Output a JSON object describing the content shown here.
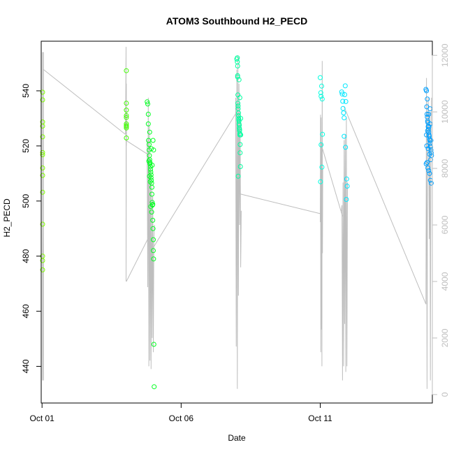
{
  "chart_data": {
    "type": "scatter",
    "title": "ATOM3 Southbound H2_PECD",
    "xlabel": "Date",
    "ylabel": "H2_PECD",
    "x_ticks": [
      "Oct 01",
      "Oct 06",
      "Oct 11"
    ],
    "x_tick_days": [
      1,
      6,
      11
    ],
    "xlim_days": [
      0.97,
      15.03
    ],
    "ylim": [
      426.7,
      558.0
    ],
    "y_ticks": [
      440,
      460,
      480,
      500,
      520,
      540
    ],
    "y2lim": [
      -300,
      12500
    ],
    "y2_ticks": [
      0,
      2000,
      4000,
      6000,
      8000,
      10000,
      12000
    ],
    "grid": false,
    "legend": "none",
    "colors": {
      "grey_line": "#bebebe",
      "points_oct1": "#80ff00",
      "points_oct4": "#40ff00",
      "points_oct5": "#00ff20",
      "points_oct8": "#00ffa0",
      "points_oct11": "#00ffe0",
      "points_oct12": "#00e8ff",
      "points_oct15": "#00a0ff"
    },
    "series": [
      {
        "color_key": "points_oct1",
        "x": [
          1.02,
          1.02,
          1.02,
          1.02,
          1.02,
          1.02,
          1.02,
          1.02,
          1.02,
          1.02,
          1.02,
          1.02,
          1.02,
          1.02
        ],
        "y": [
          539.5,
          536.7,
          528.7,
          527.2,
          523.3,
          517.6,
          516.8,
          509.3,
          503.2,
          491.6,
          478.4,
          475.0,
          480.0,
          512.0
        ]
      },
      {
        "color_key": "points_oct4",
        "x": [
          4.03,
          4.03,
          4.03,
          4.03,
          4.03,
          4.03,
          4.03,
          4.03,
          4.03,
          4.03
        ],
        "y": [
          547.3,
          535.5,
          531.0,
          530.3,
          527.4,
          527.0,
          526.5,
          522.9,
          528.0,
          533.0
        ]
      },
      {
        "color_key": "points_oct5",
        "x": [
          4.78,
          4.8,
          4.82,
          4.82,
          4.83,
          4.85,
          4.85,
          4.86,
          4.87,
          4.88,
          4.88,
          4.9,
          4.9,
          4.91,
          4.92,
          4.92,
          4.93,
          4.94,
          4.95,
          4.95,
          4.96,
          4.97,
          4.98,
          4.98,
          4.99,
          5.0,
          5.0,
          5.01,
          5.02,
          5.03,
          4.84,
          4.86,
          4.89,
          4.93,
          4.96,
          4.99,
          5.01,
          4.87,
          4.91,
          4.94
        ],
        "y": [
          536.0,
          535.2,
          531.5,
          528.0,
          522.0,
          520.5,
          518.5,
          516.5,
          515.0,
          514.0,
          513.5,
          512.5,
          511.5,
          510.5,
          509.5,
          508.5,
          507.5,
          506.5,
          505.0,
          502.5,
          499.5,
          498.5,
          498.8,
          493.0,
          490.0,
          486.0,
          482.0,
          479.0,
          448.0,
          432.6,
          514.5,
          509.0,
          507.0,
          519.0,
          513.0,
          522.0,
          518.5,
          525.0,
          498.0,
          496.0
        ]
      },
      {
        "color_key": "points_oct8",
        "x": [
          8.0,
          8.02,
          8.02,
          8.03,
          8.03,
          8.04,
          8.04,
          8.05,
          8.05,
          8.06,
          8.06,
          8.07,
          8.07,
          8.08,
          8.08,
          8.09,
          8.09,
          8.1,
          8.1,
          8.11,
          8.11,
          8.12,
          8.12,
          8.13,
          8.14,
          8.14,
          8.05,
          8.08,
          8.11,
          8.03
        ],
        "y": [
          551.5,
          552.0,
          550.5,
          545.0,
          545.5,
          538.5,
          535.5,
          534.5,
          533.5,
          532.0,
          531.0,
          530.0,
          529.5,
          529.0,
          528.0,
          527.5,
          526.5,
          526.0,
          525.5,
          524.5,
          524.0,
          520.5,
          517.5,
          512.5,
          524.0,
          530.0,
          509.0,
          544.0,
          537.5,
          549.0
        ]
      },
      {
        "color_key": "points_oct11",
        "x": [
          11.0,
          11.02,
          11.03,
          11.05,
          11.07,
          11.08,
          11.03,
          11.06,
          11.01
        ],
        "y": [
          544.8,
          539.3,
          538.0,
          541.7,
          537.0,
          524.2,
          520.4,
          512.3,
          507.0
        ]
      },
      {
        "color_key": "points_oct12",
        "x": [
          11.77,
          11.79,
          11.81,
          11.82,
          11.84,
          11.86,
          11.88,
          11.9,
          11.92,
          11.94,
          11.95,
          11.97,
          11.86,
          11.91
        ],
        "y": [
          539.6,
          538.8,
          536.2,
          533.6,
          532.0,
          530.2,
          538.6,
          541.8,
          536.1,
          500.6,
          508.0,
          505.4,
          523.5,
          519.5
        ]
      },
      {
        "color_key": "points_oct15",
        "x": [
          14.8,
          14.82,
          14.83,
          14.84,
          14.85,
          14.86,
          14.87,
          14.88,
          14.89,
          14.9,
          14.91,
          14.92,
          14.93,
          14.94,
          14.95,
          14.96,
          14.97,
          14.98,
          14.99,
          15.0,
          14.81,
          14.84,
          14.87,
          14.9,
          14.93,
          14.96,
          14.99,
          14.82,
          14.86,
          14.91,
          14.95,
          14.98,
          14.88,
          14.93,
          14.97,
          14.85,
          14.9,
          14.95,
          14.83
        ],
        "y": [
          540.5,
          540.0,
          534.2,
          531.5,
          530.5,
          529.0,
          528.5,
          527.0,
          526.0,
          525.0,
          524.0,
          523.5,
          522.5,
          522.0,
          521.0,
          520.0,
          519.5,
          518.5,
          517.5,
          516.5,
          513.5,
          514.0,
          512.0,
          511.0,
          510.0,
          507.5,
          506.5,
          524.0,
          525.5,
          527.0,
          528.0,
          522.0,
          519.0,
          517.0,
          515.0,
          537.0,
          531.5,
          533.5,
          520.0
        ]
      }
    ],
    "grey_series": {
      "axis": "right",
      "segments": [
        {
          "x": [
            1.02,
            1.02,
            1.05,
            1.05,
            1.02
          ],
          "y": [
            500,
            12100,
            12100,
            500,
            6000
          ]
        },
        {
          "x": [
            1.05,
            4.0
          ],
          "y": [
            11500,
            9200
          ]
        },
        {
          "x": [
            4.0,
            4.02,
            4.02,
            4.03,
            4.03,
            4.04
          ],
          "y": [
            9200,
            12300,
            4000,
            11000,
            8800,
            10000
          ]
        },
        {
          "x": [
            4.03,
            4.8
          ],
          "y": [
            4000,
            5500
          ]
        },
        {
          "x": [
            4.0,
            4.8
          ],
          "y": [
            9000,
            8500
          ]
        },
        {
          "x": [
            4.78,
            4.8,
            4.82,
            4.84,
            4.86,
            4.88,
            4.9,
            4.92,
            4.94,
            4.96,
            4.98,
            5.0,
            5.02,
            5.04
          ],
          "y": [
            9000,
            3800,
            10500,
            1000,
            9500,
            1200,
            8000,
            900,
            7500,
            2000,
            7000,
            1500,
            5500,
            6000
          ]
        },
        {
          "x": [
            5.0,
            8.0
          ],
          "y": [
            5200,
            10000
          ]
        },
        {
          "x": [
            7.96,
            7.98,
            8.0,
            8.02,
            8.04,
            8.06,
            8.08,
            8.1,
            8.12,
            8.14,
            8.16
          ],
          "y": [
            10500,
            1700,
            11500,
            200,
            12000,
            3500,
            11000,
            6000,
            10000,
            4500,
            6500
          ]
        },
        {
          "x": [
            8.1,
            11.0
          ],
          "y": [
            7100,
            6400
          ]
        },
        {
          "x": [
            11.0,
            11.01,
            11.02,
            11.03,
            11.04,
            11.05,
            11.06,
            11.07,
            11.08,
            11.09
          ],
          "y": [
            6100,
            9900,
            1500,
            9800,
            2300,
            8900,
            1000,
            11800,
            5000,
            8000
          ]
        },
        {
          "x": [
            11.08,
            11.8
          ],
          "y": [
            8700,
            6300
          ]
        },
        {
          "x": [
            11.76,
            11.78,
            11.8,
            11.82,
            11.84,
            11.86,
            11.88,
            11.9,
            11.92,
            11.94,
            11.96,
            11.98
          ],
          "y": [
            6500,
            6700,
            500,
            7500,
            1000,
            9000,
            2500,
            9200,
            800,
            9800,
            1000,
            7500
          ]
        },
        {
          "x": [
            11.85,
            14.8
          ],
          "y": [
            10200,
            3200
          ]
        },
        {
          "x": [
            14.8,
            14.82,
            14.84,
            14.86,
            14.88,
            14.9,
            14.92,
            14.94,
            14.96,
            14.98,
            15.0
          ],
          "y": [
            3200,
            11200,
            200,
            9500,
            10500,
            8800,
            5500,
            10000,
            500,
            9000,
            10500
          ]
        },
        {
          "x": [
            1.02,
            1.02
          ],
          "y": [
            800,
            2500
          ]
        }
      ]
    }
  }
}
